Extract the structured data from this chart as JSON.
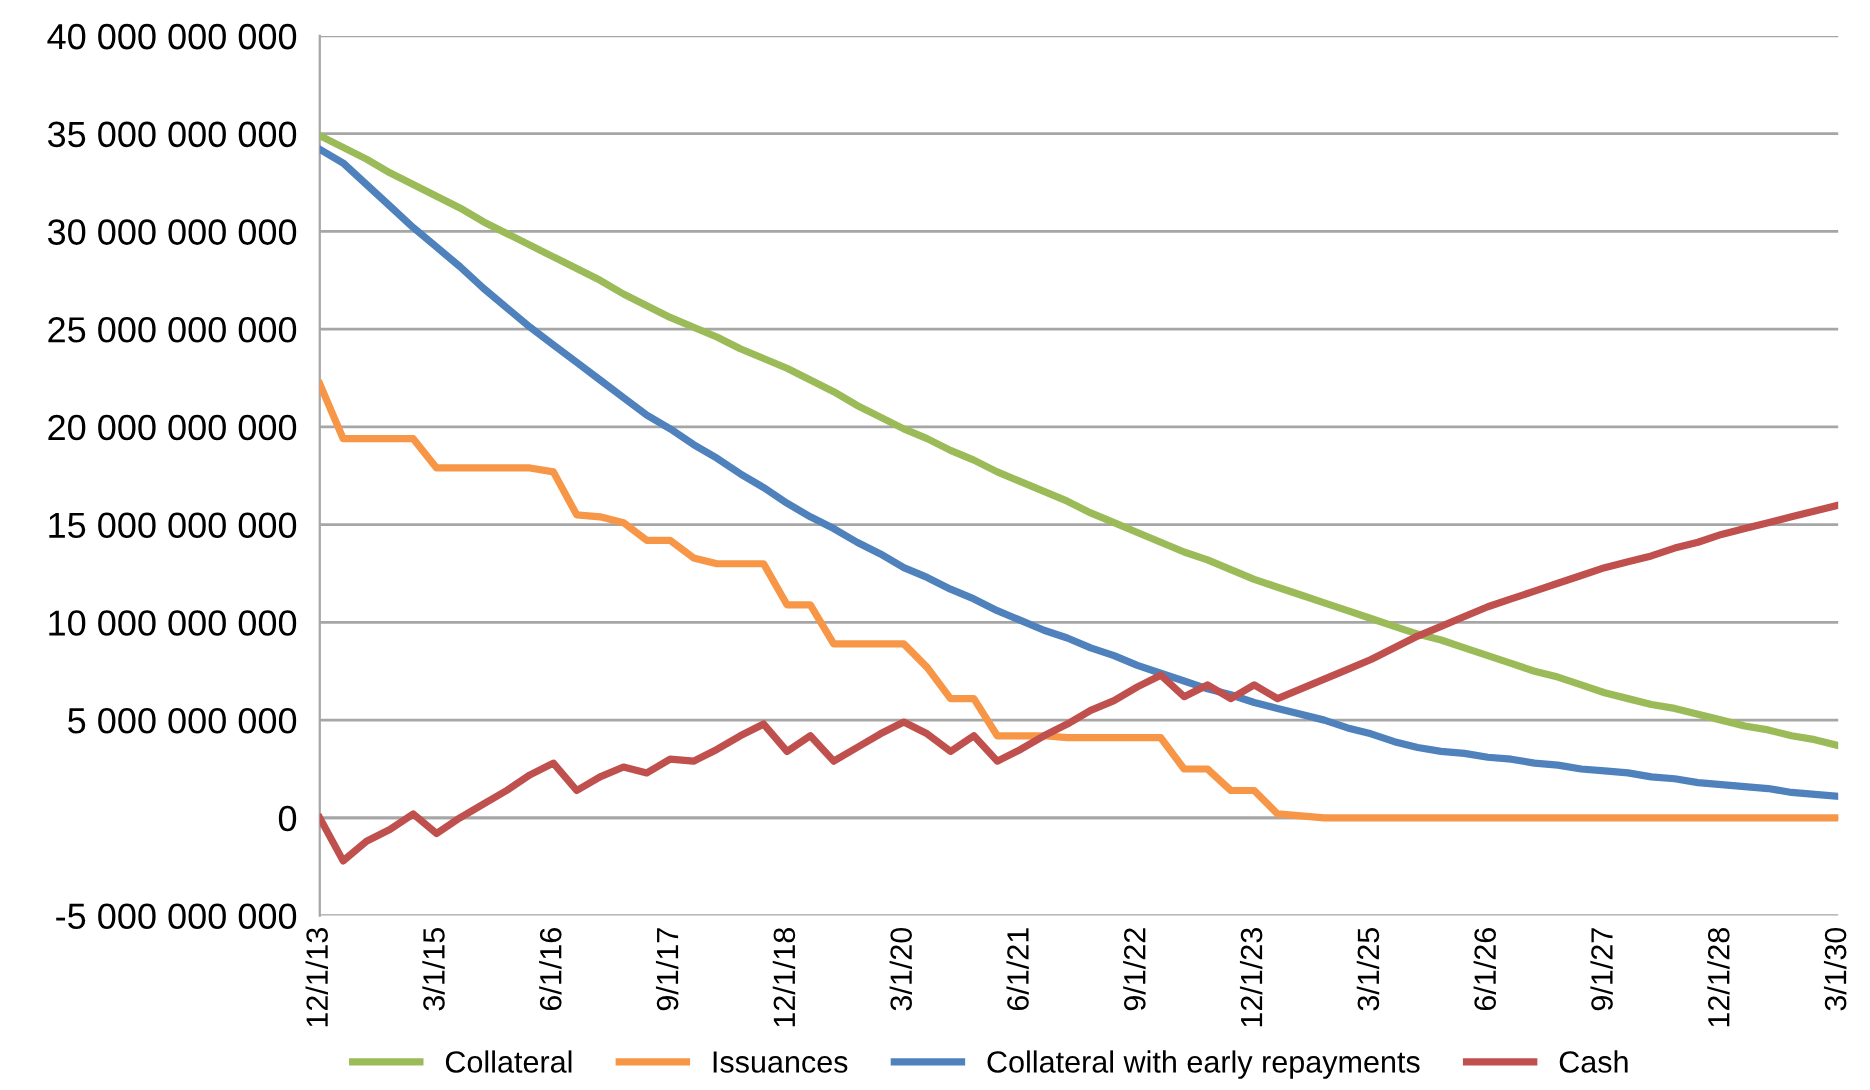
{
  "chart_data": {
    "type": "line",
    "categories": [
      "12/1/13",
      null,
      null,
      null,
      null,
      "3/1/15",
      null,
      null,
      null,
      null,
      "6/1/16",
      null,
      null,
      null,
      null,
      "9/1/17",
      null,
      null,
      null,
      null,
      "12/1/18",
      null,
      null,
      null,
      null,
      "3/1/20",
      null,
      null,
      null,
      null,
      "6/1/21",
      null,
      null,
      null,
      null,
      "9/1/22",
      null,
      null,
      null,
      null,
      "12/1/23",
      null,
      null,
      null,
      null,
      "3/1/25",
      null,
      null,
      null,
      null,
      "6/1/26",
      null,
      null,
      null,
      null,
      "9/1/27",
      null,
      null,
      null,
      null,
      "12/1/28",
      null,
      null,
      null,
      null,
      "3/1/30"
    ],
    "series": [
      {
        "name": "Collateral",
        "color": "#9bbb59",
        "values": [
          34900000000,
          34300000000,
          33700000000,
          33000000000,
          32400000000,
          31800000000,
          31200000000,
          30500000000,
          29900000000,
          29300000000,
          28700000000,
          28100000000,
          27500000000,
          26800000000,
          26200000000,
          25600000000,
          25100000000,
          24600000000,
          24000000000,
          23500000000,
          23000000000,
          22400000000,
          21800000000,
          21100000000,
          20500000000,
          19900000000,
          19400000000,
          18800000000,
          18300000000,
          17700000000,
          17200000000,
          16700000000,
          16200000000,
          15600000000,
          15100000000,
          14600000000,
          14100000000,
          13600000000,
          13200000000,
          12700000000,
          12200000000,
          11800000000,
          11400000000,
          11000000000,
          10600000000,
          10200000000,
          9800000000,
          9400000000,
          9100000000,
          8700000000,
          8300000000,
          7900000000,
          7500000000,
          7200000000,
          6800000000,
          6400000000,
          6100000000,
          5800000000,
          5600000000,
          5300000000,
          5000000000,
          4700000000,
          4500000000,
          4200000000,
          4000000000,
          3700000000
        ]
      },
      {
        "name": "Issuances",
        "color": "#f79646",
        "values": [
          22200000000,
          19400000000,
          19400000000,
          19400000000,
          19400000000,
          17900000000,
          17900000000,
          17900000000,
          17900000000,
          17900000000,
          17700000000,
          15500000000,
          15400000000,
          15100000000,
          14200000000,
          14200000000,
          13300000000,
          13000000000,
          13000000000,
          13000000000,
          10900000000,
          10900000000,
          8900000000,
          8900000000,
          8900000000,
          8900000000,
          7700000000,
          6100000000,
          6100000000,
          4200000000,
          4200000000,
          4200000000,
          4100000000,
          4100000000,
          4100000000,
          4100000000,
          4100000000,
          2500000000,
          2500000000,
          1400000000,
          1400000000,
          200000000,
          100000000,
          0,
          0,
          0,
          0,
          0,
          0,
          0,
          0,
          0,
          0,
          0,
          0,
          0,
          0,
          0,
          0,
          0,
          0,
          0,
          0,
          0,
          0,
          0
        ]
      },
      {
        "name": "Collateral with early repayments",
        "color": "#4f81bd",
        "values": [
          34200000000,
          33500000000,
          32400000000,
          31300000000,
          30200000000,
          29200000000,
          28200000000,
          27100000000,
          26100000000,
          25100000000,
          24200000000,
          23300000000,
          22400000000,
          21500000000,
          20600000000,
          19900000000,
          19100000000,
          18400000000,
          17600000000,
          16900000000,
          16100000000,
          15400000000,
          14800000000,
          14100000000,
          13500000000,
          12800000000,
          12300000000,
          11700000000,
          11200000000,
          10600000000,
          10100000000,
          9600000000,
          9200000000,
          8700000000,
          8300000000,
          7800000000,
          7400000000,
          7000000000,
          6600000000,
          6300000000,
          5900000000,
          5600000000,
          5300000000,
          5000000000,
          4600000000,
          4300000000,
          3900000000,
          3600000000,
          3400000000,
          3300000000,
          3100000000,
          3000000000,
          2800000000,
          2700000000,
          2500000000,
          2400000000,
          2300000000,
          2100000000,
          2000000000,
          1800000000,
          1700000000,
          1600000000,
          1500000000,
          1300000000,
          1200000000,
          1100000000
        ]
      },
      {
        "name": "Cash",
        "color": "#c0504d",
        "values": [
          0,
          -2200000000,
          -1200000000,
          -600000000,
          200000000,
          -800000000,
          0,
          700000000,
          1400000000,
          2200000000,
          2800000000,
          1400000000,
          2100000000,
          2600000000,
          2300000000,
          3000000000,
          2900000000,
          3500000000,
          4200000000,
          4800000000,
          3400000000,
          4200000000,
          2900000000,
          3600000000,
          4300000000,
          4900000000,
          4300000000,
          3400000000,
          4200000000,
          2900000000,
          3500000000,
          4200000000,
          4800000000,
          5500000000,
          6000000000,
          6700000000,
          7300000000,
          6200000000,
          6800000000,
          6100000000,
          6800000000,
          6100000000,
          6600000000,
          7100000000,
          7600000000,
          8100000000,
          8700000000,
          9300000000,
          9800000000,
          10300000000,
          10800000000,
          11200000000,
          11600000000,
          12000000000,
          12400000000,
          12800000000,
          13100000000,
          13400000000,
          13800000000,
          14100000000,
          14500000000,
          14800000000,
          15100000000,
          15400000000,
          15700000000,
          16000000000
        ]
      }
    ],
    "ylim": [
      -5000000000,
      40000000000
    ],
    "yticks": [
      {
        "value": -5000000000,
        "label": "-5 000 000 000"
      },
      {
        "value": 0,
        "label": "0"
      },
      {
        "value": 5000000000,
        "label": "5 000 000 000"
      },
      {
        "value": 10000000000,
        "label": "10 000 000 000"
      },
      {
        "value": 15000000000,
        "label": "15 000 000 000"
      },
      {
        "value": 20000000000,
        "label": "20 000 000 000"
      },
      {
        "value": 25000000000,
        "label": "25 000 000 000"
      },
      {
        "value": 30000000000,
        "label": "30 000 000 000"
      },
      {
        "value": 35000000000,
        "label": "35 000 000 000"
      },
      {
        "value": 40000000000,
        "label": "40 000 000 000"
      }
    ],
    "grid": "y",
    "legend": "bottom"
  }
}
